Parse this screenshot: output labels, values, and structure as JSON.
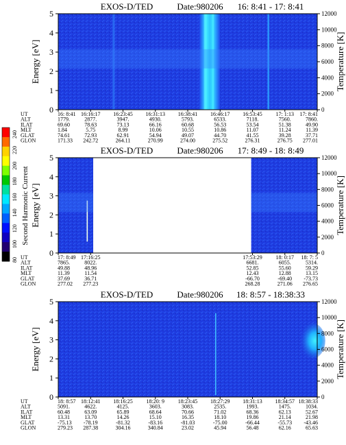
{
  "colorbar": {
    "label": "Second Harmonic Current",
    "ticks": [
      "240",
      "220",
      "200",
      "180",
      "160",
      "140",
      "120",
      "100",
      "80"
    ],
    "colors": [
      "#ff0000",
      "#ff6a00",
      "#ffd200",
      "#ffff00",
      "#7fff00",
      "#00c800",
      "#00e0a0",
      "#00e8ff",
      "#00a8ff",
      "#0060ff",
      "#0010ff",
      "#1000c0",
      "#200070",
      "#000000"
    ]
  },
  "chart_data": [
    {
      "type": "heatmap",
      "title": "EXOS-D/TED",
      "date": "Date:980206",
      "time_range": "16: 8:41 - 17: 8:41",
      "ylabel": "Energy [eV]",
      "y2label": "Temperature [K]",
      "ylim": [
        0,
        5
      ],
      "y_ticks": [
        "0",
        "1",
        "2",
        "3",
        "4",
        "5"
      ],
      "y2lim": [
        0,
        12000
      ],
      "y2_ticks": [
        "0",
        "2000",
        "4000",
        "6000",
        "8000",
        "10000",
        "12000"
      ],
      "row_labels": [
        "UT",
        "ALT",
        "ILAT",
        "MLT",
        "GLAT",
        "GLON"
      ],
      "columns": [
        [
          "16: 8:41",
          "1779.",
          "69.60",
          "1.84",
          "74.61",
          "171.33"
        ],
        [
          "16:16:17",
          "2877.",
          "78.63",
          "5.75",
          "72.93",
          "242.72"
        ],
        [
          "16:23:45",
          "3947.",
          "73.13",
          "8.99",
          "62.91",
          "264.11"
        ],
        [
          "16:31:13",
          "4930.",
          "66.16",
          "10.06",
          "54.94",
          "270.99"
        ],
        [
          "16:38:41",
          "5793.",
          "60.68",
          "10.55",
          "49.07",
          "274.00"
        ],
        [
          "16:46:17",
          "6533.",
          "56.53",
          "10.86",
          "44.70",
          "275.52"
        ],
        [
          "16:53:45",
          "7118.",
          "53.54",
          "11.07",
          "41.55",
          "276.31"
        ],
        [
          "17: 1:13",
          "7560.",
          "51.38",
          "11.24",
          "39.28",
          "276.75"
        ],
        [
          "17: 8:41",
          "7860.",
          "49.90",
          "11.39",
          "37.71",
          "277.01"
        ]
      ],
      "data_coverage": [
        [
          0,
          1
        ]
      ],
      "features": [
        {
          "kind": "band",
          "x": [
            0.545,
            0.625
          ],
          "intensity": "high"
        },
        {
          "kind": "band",
          "x": [
            0.808,
            0.815
          ],
          "intensity": "medium"
        },
        {
          "kind": "band",
          "x": [
            0.21,
            0.218
          ],
          "intensity": "low"
        }
      ]
    },
    {
      "type": "heatmap",
      "title": "EXOS-D/TED",
      "date": "Date:980206",
      "time_range": "17: 8:49 - 18: 8:49",
      "ylabel": "Energy [eV]",
      "y2label": "Temperature [K]",
      "ylim": [
        0,
        5
      ],
      "y_ticks": [
        "0",
        "1",
        "2",
        "3",
        "4",
        "5"
      ],
      "y2lim": [
        0,
        12000
      ],
      "y2_ticks": [
        "0",
        "2000",
        "4000",
        "6000",
        "8000",
        "10000",
        "12000"
      ],
      "row_labels": [
        "UT",
        "ALT",
        "ILAT",
        "MLT",
        "GLAT",
        "GLON"
      ],
      "columns": [
        [
          "17: 8:49",
          "7865.",
          "49.88",
          "11.39",
          "37.69",
          "277.02"
        ],
        [
          "17:16:25",
          "8022.",
          "48.96",
          "11.54",
          "36.71",
          "277.23"
        ],
        [
          "17:53:29",
          "6681.",
          "52.85",
          "12.43",
          "-66.70",
          "268.28"
        ],
        [
          "18: 0:17",
          "6055.",
          "55.60",
          "12.88",
          "-69.40",
          "271.06"
        ],
        [
          "18: 7: 5",
          "5314.",
          "59.29",
          "13.15",
          "-73.73",
          "276.65"
        ]
      ],
      "column_positions": [
        0,
        0.125,
        0.75,
        0.875,
        1.0
      ],
      "data_coverage": [
        [
          0,
          0.135
        ],
        [
          0.745,
          1
        ]
      ],
      "features": [
        {
          "kind": "line",
          "x": 0.112,
          "intensity": "spike"
        }
      ]
    },
    {
      "type": "heatmap",
      "title": "EXOS-D/TED",
      "date": "Date:980206",
      "time_range": "18: 8:57 - 18:38:33",
      "ylabel": "Energy [eV]",
      "y2label": "Temperature [K]",
      "ylim": [
        0,
        5
      ],
      "y_ticks": [
        "0",
        "1",
        "2",
        "3",
        "4",
        "5"
      ],
      "y2lim": [
        0,
        12000
      ],
      "y2_ticks": [
        "0",
        "2000",
        "4000",
        "6000",
        "8000",
        "10000",
        "12000"
      ],
      "row_labels": [
        "UT",
        "ALT",
        "ILAT",
        "MLT",
        "GLAT",
        "GLON"
      ],
      "columns": [
        [
          "18: 8:57",
          "5091.",
          "60.48",
          "13.31",
          "-75.13",
          "279.23"
        ],
        [
          "18:12:41",
          "4622.",
          "63.09",
          "13.70",
          "-78.19",
          "287.38"
        ],
        [
          "18:16:25",
          "4125.",
          "65.89",
          "14.26",
          "-81.32",
          "304.16"
        ],
        [
          "18:20: 9",
          "3603.",
          "68.64",
          "15.10",
          "-83.16",
          "340.84"
        ],
        [
          "18:23:45",
          "3083.",
          "70.66",
          "16.35",
          "-81.03",
          "23.02"
        ],
        [
          "18:27:29",
          "2535.",
          "71.02",
          "18.10",
          "-75.00",
          "45.94"
        ],
        [
          "18:31:13",
          "1993.",
          "68.36",
          "19.86",
          "-66.44",
          "56.48"
        ],
        [
          "18:34:57",
          "1475.",
          "62.13",
          "21.14",
          "-55.73",
          "62.16"
        ],
        [
          "18:38:33",
          "1034.",
          "52.67",
          "21.98",
          "-43.46",
          "65.63"
        ]
      ],
      "data_coverage": [
        [
          0,
          1
        ]
      ],
      "features": [
        {
          "kind": "line",
          "x": 0.608,
          "intensity": "medium"
        },
        {
          "kind": "blob",
          "x": [
            0.92,
            1.0
          ],
          "y": [
            2.3,
            3.6
          ],
          "intensity": "high"
        }
      ]
    }
  ]
}
